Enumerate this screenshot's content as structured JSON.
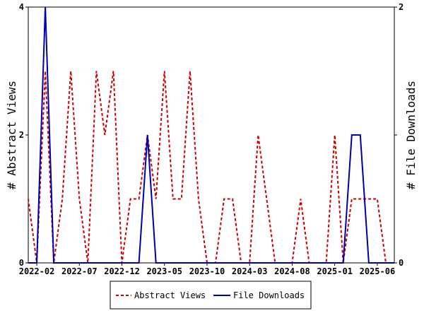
{
  "chart_data": {
    "type": "line",
    "title": "",
    "ylabel_left": "# Abstract Views",
    "ylabel_right": "# File Downloads",
    "xlabel": "",
    "x_tick_labels": [
      "2022-02",
      "2022-07",
      "2022-12",
      "2023-05",
      "2023-10",
      "2024-03",
      "2024-08",
      "2025-01",
      "2025-06"
    ],
    "x_range": [
      "2022-01",
      "2025-08"
    ],
    "ylim_left": [
      0,
      4
    ],
    "ylim_right": [
      0,
      2
    ],
    "y_ticks_left": [
      "0",
      "2",
      "4"
    ],
    "y_ticks_right": [
      "0",
      "1",
      "2"
    ],
    "grid": false,
    "legend_position": "bottom",
    "series": [
      {
        "name": "Abstract Views",
        "axis": "left",
        "color": "#cc0000",
        "style": "dashed",
        "x": [
          "2022-01",
          "2022-02",
          "2022-03",
          "2022-04",
          "2022-05",
          "2022-06",
          "2022-07",
          "2022-08",
          "2022-09",
          "2022-10",
          "2022-11",
          "2022-12",
          "2023-01",
          "2023-02",
          "2023-03",
          "2023-04",
          "2023-05",
          "2023-06",
          "2023-07",
          "2023-08",
          "2023-09",
          "2023-10",
          "2023-11",
          "2023-12",
          "2024-01",
          "2024-02",
          "2024-03",
          "2024-04",
          "2024-05",
          "2024-06",
          "2024-07",
          "2024-08",
          "2024-09",
          "2024-10",
          "2024-11",
          "2024-12",
          "2025-01",
          "2025-02",
          "2025-03",
          "2025-04",
          "2025-05",
          "2025-06",
          "2025-07",
          "2025-08"
        ],
        "values": [
          1,
          0,
          3,
          0,
          1,
          3,
          1,
          0,
          3,
          2,
          3,
          0,
          1,
          1,
          2,
          1,
          3,
          1,
          1,
          3,
          1,
          0,
          0,
          1,
          1,
          0,
          0,
          2,
          1,
          0,
          0,
          0,
          1,
          0,
          0,
          0,
          2,
          0,
          1,
          1,
          1,
          1,
          0,
          0
        ]
      },
      {
        "name": "File Downloads",
        "axis": "right",
        "color": "#0000aa",
        "style": "solid",
        "x": [
          "2022-01",
          "2022-02",
          "2022-03",
          "2022-04",
          "2022-05",
          "2022-06",
          "2022-07",
          "2022-08",
          "2022-09",
          "2022-10",
          "2022-11",
          "2022-12",
          "2023-01",
          "2023-02",
          "2023-03",
          "2023-04",
          "2023-05",
          "2023-06",
          "2023-07",
          "2023-08",
          "2023-09",
          "2023-10",
          "2023-11",
          "2023-12",
          "2024-01",
          "2024-02",
          "2024-03",
          "2024-04",
          "2024-05",
          "2024-06",
          "2024-07",
          "2024-08",
          "2024-09",
          "2024-10",
          "2024-11",
          "2024-12",
          "2025-01",
          "2025-02",
          "2025-03",
          "2025-04",
          "2025-05",
          "2025-06",
          "2025-07",
          "2025-08"
        ],
        "values": [
          0,
          0,
          2,
          0,
          0,
          0,
          0,
          0,
          0,
          0,
          0,
          0,
          0,
          0,
          1,
          0,
          0,
          0,
          0,
          0,
          0,
          0,
          0,
          0,
          0,
          0,
          0,
          0,
          0,
          0,
          0,
          0,
          0,
          0,
          0,
          0,
          0,
          0,
          1,
          1,
          0,
          0,
          0,
          0
        ]
      }
    ]
  }
}
